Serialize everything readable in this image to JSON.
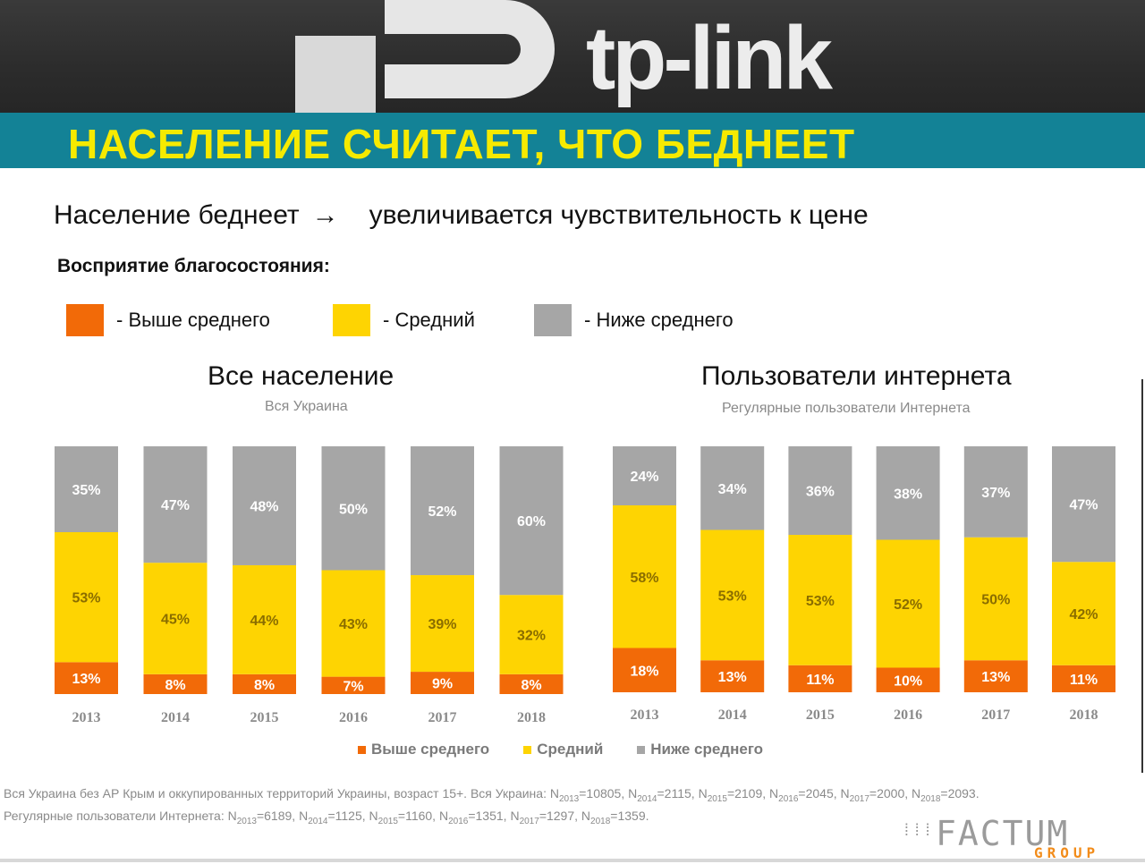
{
  "banner": {
    "logo_text": "tp-link"
  },
  "title": "НАСЕЛЕНИЕ СЧИТАЕТ, ЧТО БЕДНЕЕТ",
  "headline": {
    "left": "Население беднеет",
    "arrow": "→",
    "right": "увеличивается чувствительность к цене"
  },
  "perception_label": "Восприятие благосостояния:",
  "top_legend": [
    {
      "label": "- Выше среднего",
      "color": "#f26a08"
    },
    {
      "label": "- Средний",
      "color": "#fed402"
    },
    {
      "label": "- Ниже среднего",
      "color": "#a6a6a6"
    }
  ],
  "colors": {
    "above": "#f26a08",
    "average": "#fed402",
    "below": "#a6a6a6",
    "accent": "#138296",
    "title_text": "#f6ea00"
  },
  "chart_data": [
    {
      "type": "bar",
      "stacked": true,
      "title": "Все население",
      "subtitle": "Вся Украина",
      "categories": [
        "2013",
        "2014",
        "2015",
        "2016",
        "2017",
        "2018"
      ],
      "series": [
        {
          "name": "Выше среднего",
          "values": [
            13,
            8,
            8,
            7,
            9,
            8
          ],
          "labels": [
            "13%",
            "8%",
            "8%",
            "7%",
            "9%",
            "8%"
          ]
        },
        {
          "name": "Средний",
          "values": [
            53,
            45,
            44,
            43,
            39,
            32
          ],
          "labels": [
            "53%",
            "45%",
            "44%",
            "43%",
            "39%",
            "32%"
          ]
        },
        {
          "name": "Ниже среднего",
          "values": [
            35,
            47,
            48,
            50,
            52,
            60
          ],
          "labels": [
            "35%",
            "47%",
            "48%",
            "50%",
            "52%",
            "60%"
          ]
        }
      ]
    },
    {
      "type": "bar",
      "stacked": true,
      "title": "Пользователи интернета",
      "subtitle": "Регулярные пользователи Интернета",
      "categories": [
        "2013",
        "2014",
        "2015",
        "2016",
        "2017",
        "2018"
      ],
      "series": [
        {
          "name": "Выше среднего",
          "values": [
            18,
            13,
            11,
            10,
            13,
            11
          ],
          "labels": [
            "18%",
            "13%",
            "11%",
            "10%",
            "13%",
            "11%"
          ]
        },
        {
          "name": "Средний",
          "values": [
            58,
            53,
            53,
            52,
            50,
            42
          ],
          "labels": [
            "58%",
            "53%",
            "53%",
            "52%",
            "50%",
            "42%"
          ]
        },
        {
          "name": "Ниже среднего",
          "values": [
            24,
            34,
            36,
            38,
            37,
            47
          ],
          "labels": [
            "24%",
            "34%",
            "36%",
            "38%",
            "37%",
            "47%"
          ]
        }
      ]
    }
  ],
  "bottom_legend": [
    "Выше среднего",
    "Средний",
    "Ниже среднего"
  ],
  "footnote": {
    "line1_prefix": "Вся Украина без АР Крым и оккупированных территорий Украины, возраст 15+. Вся Украина: ",
    "line1_n": [
      [
        "2013",
        "10805"
      ],
      [
        "2014",
        "2115"
      ],
      [
        "2015",
        "2109"
      ],
      [
        "2016",
        "2045"
      ],
      [
        "2017",
        "2000"
      ],
      [
        "2018",
        "2093"
      ]
    ],
    "line2_prefix": "Регулярные пользователи Интернета: ",
    "line2_n": [
      [
        "2013",
        "6189"
      ],
      [
        "2014",
        "1125"
      ],
      [
        "2015",
        "1160"
      ],
      [
        "2016",
        "1351"
      ],
      [
        "2017",
        "1297"
      ],
      [
        "2018",
        "1359"
      ]
    ]
  },
  "factum": {
    "name": "FACTUM",
    "group": "GROUP",
    "mark": "⁞⁞⁞"
  }
}
